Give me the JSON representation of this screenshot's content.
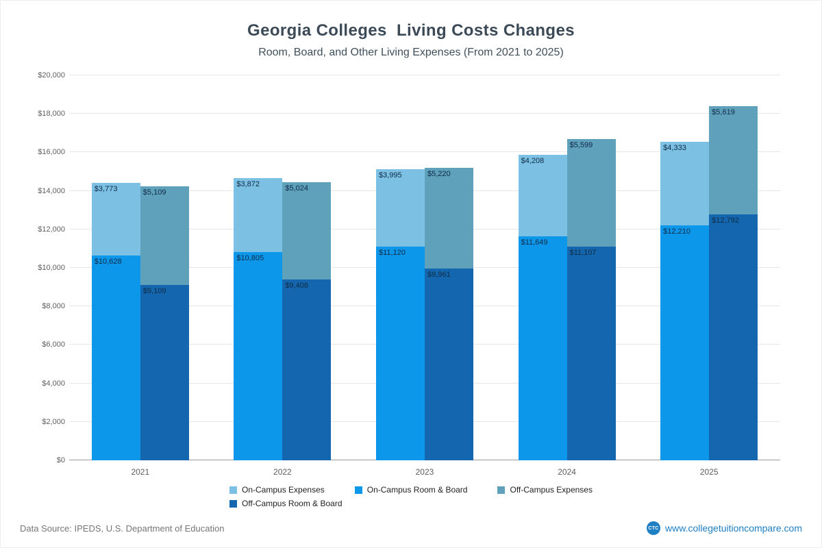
{
  "chart_data": {
    "type": "bar",
    "variant": "stacked-grouped",
    "title": "Georgia Colleges  Living Costs Changes",
    "subtitle": "Room, Board, and Other Living Expenses (From 2021 to 2025)",
    "categories": [
      "2021",
      "2022",
      "2023",
      "2024",
      "2025"
    ],
    "ylim": [
      0,
      20000
    ],
    "grid": true,
    "y_ticks": [
      {
        "value": 0,
        "label": "$0"
      },
      {
        "value": 2000,
        "label": "$2,000"
      },
      {
        "value": 4000,
        "label": "$4,000"
      },
      {
        "value": 6000,
        "label": "$6,000"
      },
      {
        "value": 8000,
        "label": "$8,000"
      },
      {
        "value": 10000,
        "label": "$10,000"
      },
      {
        "value": 12000,
        "label": "$12,000"
      },
      {
        "value": 14000,
        "label": "$14,000"
      },
      {
        "value": 16000,
        "label": "$16,000"
      },
      {
        "value": 18000,
        "label": "$18,000"
      },
      {
        "value": 20000,
        "label": "$20,000"
      }
    ],
    "series": [
      {
        "key": "on_rb",
        "name": "On-Campus Room & Board",
        "color": "#0c97ea",
        "values": [
          10628,
          10805,
          11120,
          11649,
          12210
        ]
      },
      {
        "key": "on_exp",
        "name": "On-Campus Expenses",
        "color": "#7cc0e4",
        "values": [
          3773,
          3872,
          3995,
          4208,
          4333
        ]
      },
      {
        "key": "off_rb",
        "name": "Off-Campus Room & Board",
        "color": "#1467ae",
        "values": [
          9109,
          9408,
          9961,
          11107,
          12792
        ]
      },
      {
        "key": "off_exp",
        "name": "Off-Campus Expenses",
        "color": "#5fa0ba",
        "values": [
          5109,
          5024,
          5220,
          5599,
          5619
        ]
      }
    ],
    "bars": [
      {
        "name": "on-campus-bar",
        "segments": [
          "on_rb",
          "on_exp"
        ]
      },
      {
        "name": "off-campus-bar",
        "segments": [
          "off_rb",
          "off_exp"
        ]
      }
    ],
    "legend_rows": [
      [
        "on_exp",
        "on_rb",
        "off_exp"
      ],
      [
        "off_rb"
      ]
    ],
    "legend_position": "bottom"
  },
  "footer": {
    "data_source": "Data Source: IPEDS, U.S. Department of Education",
    "logo_text": "CTC",
    "website": "www.collegetuitioncompare.com"
  }
}
